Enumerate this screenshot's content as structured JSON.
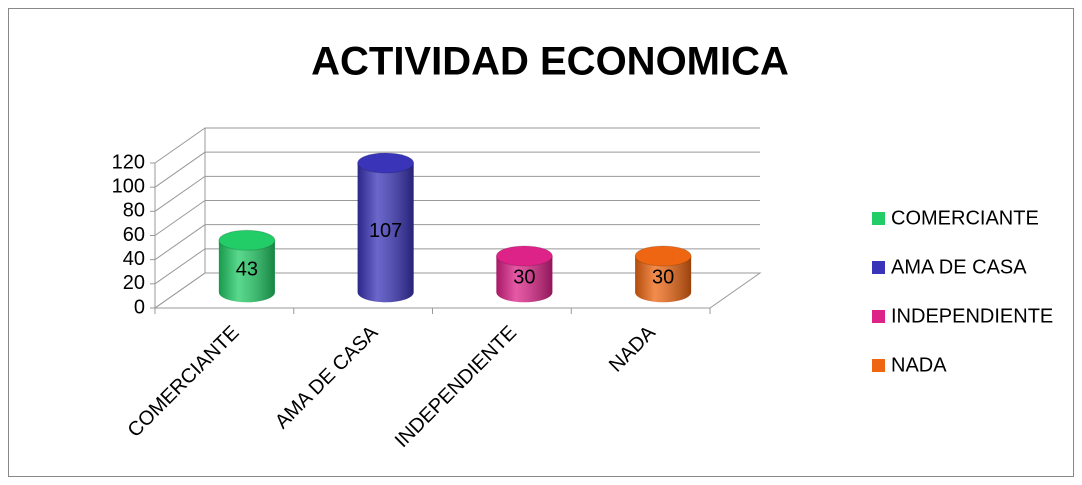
{
  "chart_data": {
    "type": "bar3d",
    "title": "ACTIVIDAD ECONOMICA",
    "categories": [
      "COMERCIANTE",
      "AMA DE CASA",
      "INDEPENDIENTE",
      "NADA"
    ],
    "values": [
      43,
      107,
      30,
      30
    ],
    "colors": [
      "#22cc66",
      "#3a34b8",
      "#dd2288",
      "#ee6611"
    ],
    "ylim": [
      0,
      120
    ],
    "yticks": [
      0,
      20,
      40,
      60,
      80,
      100,
      120
    ],
    "grid": true,
    "legend": "right"
  }
}
